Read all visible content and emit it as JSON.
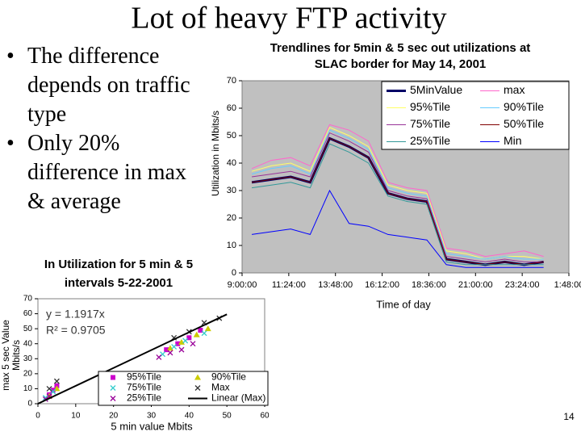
{
  "slide": {
    "title": "Lot of heavy FTP activity",
    "bullets": [
      "The difference depends on traffic type",
      "Only 20% difference in max & average"
    ],
    "page_number": "14"
  },
  "chart_data": [
    {
      "type": "line",
      "title": [
        "Trendlines for 5min & 5 sec out utilizations at",
        "SLAC border for May 14, 2001"
      ],
      "xlabel": "Time of day",
      "ylabel": [
        "Utilization in Mbits/s"
      ],
      "background": "#c0c0c0",
      "x": [
        9.5,
        10.5,
        11.5,
        12.5,
        13.5,
        14.5,
        15.5,
        16.5,
        17.5,
        18.5,
        19.5,
        20.5,
        21.5,
        22.5,
        23.5,
        24.5
      ],
      "xlim": [
        9,
        25.8
      ],
      "xticks": [
        {
          "value": 9,
          "label": "9:00:00"
        },
        {
          "value": 11.4,
          "label": "11:24:00"
        },
        {
          "value": 13.8,
          "label": "13:48:00"
        },
        {
          "value": 16.2,
          "label": "16:12:00"
        },
        {
          "value": 18.6,
          "label": "18:36:00"
        },
        {
          "value": 21,
          "label": "21:00:00"
        },
        {
          "value": 23.4,
          "label": "23:24:00"
        },
        {
          "value": 25.8,
          "label": "1:48:00"
        }
      ],
      "ylim": [
        0,
        70
      ],
      "yticks": [
        0,
        10,
        20,
        30,
        40,
        50,
        60,
        70
      ],
      "series": [
        {
          "name": "5MinValue",
          "color": "#000066",
          "width": 3,
          "values": [
            33,
            34,
            35,
            33,
            49,
            46,
            42,
            29,
            27,
            26,
            5,
            4,
            3,
            4,
            3,
            4
          ]
        },
        {
          "name": "max",
          "color": "#ff66cc",
          "width": 1,
          "values": [
            38,
            41,
            42,
            39,
            54,
            52,
            48,
            33,
            31,
            30,
            9,
            8,
            6,
            7,
            8,
            6
          ]
        },
        {
          "name": "95%Tile",
          "color": "#ffff66",
          "width": 1,
          "values": [
            37,
            39,
            40,
            37,
            53,
            50,
            46,
            32,
            30,
            29,
            8,
            7,
            5,
            6,
            6,
            5
          ]
        },
        {
          "name": "90%Tile",
          "color": "#66ccff",
          "width": 1,
          "values": [
            36,
            38,
            39,
            36,
            52,
            49,
            45,
            31,
            29,
            28,
            7,
            6,
            5,
            6,
            5,
            5
          ]
        },
        {
          "name": "75%Tile",
          "color": "#993399",
          "width": 1,
          "values": [
            35,
            36,
            37,
            35,
            51,
            48,
            44,
            30,
            28,
            27,
            6,
            5,
            4,
            5,
            4,
            4
          ]
        },
        {
          "name": "50%Tile",
          "color": "#800000",
          "width": 1,
          "values": [
            33,
            34,
            35,
            33,
            49,
            46,
            42,
            29,
            27,
            26,
            5,
            4,
            3,
            4,
            3,
            4
          ]
        },
        {
          "name": "25%Tile",
          "color": "#339999",
          "width": 1,
          "values": [
            31,
            32,
            33,
            31,
            47,
            44,
            40,
            28,
            26,
            25,
            4,
            3,
            3,
            3,
            3,
            3
          ]
        },
        {
          "name": "Min",
          "color": "#0000ff",
          "width": 1,
          "values": [
            14,
            15,
            16,
            14,
            30,
            18,
            17,
            14,
            13,
            12,
            3,
            2,
            2,
            2,
            2,
            2
          ]
        }
      ]
    },
    {
      "type": "scatter",
      "title": [
        "In Utilization for 5 min & 5",
        "intervals 5-22-2001"
      ],
      "xlabel": "5 min value Mbits",
      "ylabel": [
        "max 5 sec Value",
        "Mbits/s"
      ],
      "background": "#ffffff",
      "annotations": [
        "y = 1.1917x",
        "R² = 0.9705"
      ],
      "xlim": [
        0,
        60
      ],
      "xticks": [
        0,
        10,
        20,
        30,
        40,
        50,
        60
      ],
      "ylim": [
        0,
        70
      ],
      "yticks": [
        0,
        10,
        20,
        30,
        40,
        50,
        60,
        70
      ],
      "series": [
        {
          "name": "95%Tile",
          "color": "#cc00cc",
          "marker": "square",
          "x": [
            3,
            4,
            5,
            34,
            37,
            40,
            43
          ],
          "values": [
            6,
            9,
            12,
            36,
            40,
            44,
            49
          ]
        },
        {
          "name": "90%Tile",
          "color": "#cccc00",
          "marker": "triangle",
          "x": [
            3,
            5,
            35,
            38,
            42,
            45
          ],
          "values": [
            5,
            10,
            37,
            41,
            46,
            50
          ]
        },
        {
          "name": "75%Tile",
          "color": "#33cccc",
          "marker": "x",
          "x": [
            2,
            4,
            33,
            36,
            39,
            44
          ],
          "values": [
            4,
            8,
            33,
            38,
            42,
            47
          ]
        },
        {
          "name": "Max",
          "color": "#333333",
          "marker": "x",
          "x": [
            3,
            5,
            36,
            40,
            44,
            48
          ],
          "values": [
            10,
            15,
            44,
            48,
            54,
            57
          ]
        },
        {
          "name": "25%Tile",
          "color": "#990099",
          "marker": "x",
          "x": [
            2,
            3,
            32,
            35,
            38,
            41
          ],
          "values": [
            3,
            5,
            31,
            34,
            36,
            40
          ]
        },
        {
          "name": "Linear (Max)",
          "color": "#000000",
          "marker": "line",
          "x": [
            0,
            50
          ],
          "values": [
            0,
            59.6
          ]
        }
      ]
    }
  ]
}
